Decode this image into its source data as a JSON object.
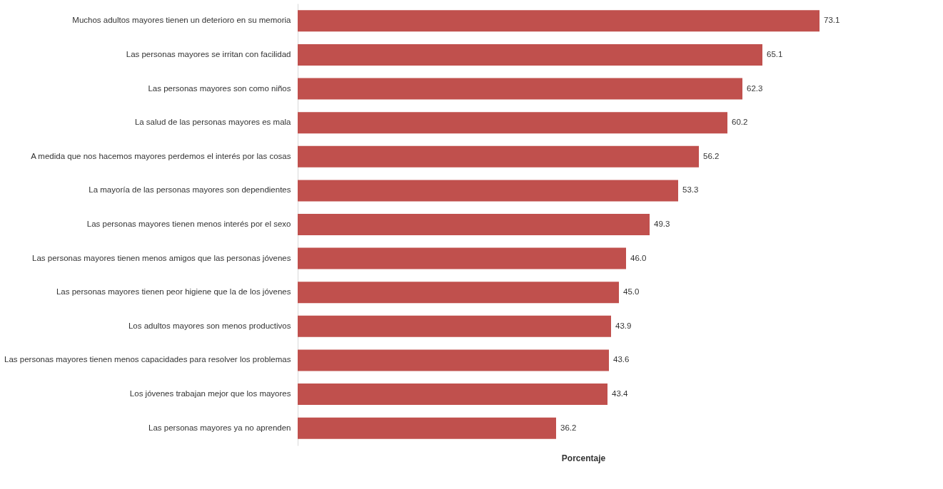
{
  "chart_data": {
    "type": "bar",
    "orientation": "horizontal",
    "xlabel": "Porcentaje",
    "categories": [
      "Muchos adultos mayores tienen un deterioro en su memoria",
      "Las personas mayores se irritan con facilidad",
      "Las personas mayores son como niños",
      "La salud de las personas mayores es mala",
      "A medida que nos hacemos mayores perdemos el interés por las cosas",
      "La mayoría de las personas mayores son dependientes",
      "Las personas mayores tienen menos interés por el sexo",
      "Las personas mayores tienen menos amigos que las personas jóvenes",
      "Las personas mayores tienen peor higiene que la de los jóvenes",
      "Los adultos mayores son menos productivos",
      "Las personas mayores tienen menos capacidades para resolver los problemas",
      "Los jóvenes trabajan mejor que los mayores",
      "Las personas mayores ya no aprenden"
    ],
    "values": [
      73.1,
      65.1,
      62.3,
      60.2,
      56.2,
      53.3,
      49.3,
      46.0,
      45.0,
      43.9,
      43.6,
      43.4,
      36.2
    ],
    "value_labels": [
      "73.1",
      "65.1",
      "62.3",
      "60.2",
      "56.2",
      "53.3",
      "49.3",
      "46.0",
      "45.0",
      "43.9",
      "43.6",
      "43.4",
      "36.2"
    ],
    "color": "#c0504d",
    "xlim": [
      0,
      80
    ],
    "tick_labels": "y",
    "grid": false
  }
}
